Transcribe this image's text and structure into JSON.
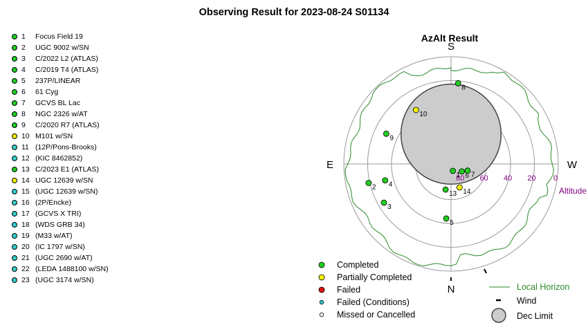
{
  "title": "Observing Result for 2023-08-24 S01134",
  "chart_title": "AzAlt Result",
  "colors": {
    "completed": "#22cc22",
    "partial": "#f2f200",
    "failed": "#dd1111",
    "failed_conditions": "#33cccc",
    "missed": "#ffffff",
    "horizon": "#2a8a2a",
    "altitude_label": "#800080"
  },
  "targets": [
    {
      "num": "1",
      "name": "Focus Field 19",
      "status": "completed"
    },
    {
      "num": "2",
      "name": "UGC 9002 w/SN",
      "status": "completed"
    },
    {
      "num": "3",
      "name": "C/2022 L2 (ATLAS)",
      "status": "completed"
    },
    {
      "num": "4",
      "name": "C/2019 T4 (ATLAS)",
      "status": "completed"
    },
    {
      "num": "5",
      "name": "237P/LINEAR",
      "status": "completed"
    },
    {
      "num": "6",
      "name": "61 Cyg",
      "status": "completed"
    },
    {
      "num": "7",
      "name": "GCVS BL Lac",
      "status": "completed"
    },
    {
      "num": "8",
      "name": "NGC 2326 w/AT",
      "status": "completed"
    },
    {
      "num": "9",
      "name": "C/2020 R7 (ATLAS)",
      "status": "completed"
    },
    {
      "num": "10",
      "name": "M101 w/SN",
      "status": "partial"
    },
    {
      "num": "11",
      "name": " (12P/Pons-Brooks)",
      "status": "failed_conditions"
    },
    {
      "num": "12",
      "name": " (KIC 8462852)",
      "status": "failed_conditions"
    },
    {
      "num": "13",
      "name": "C/2023 E1 (ATLAS)",
      "status": "completed"
    },
    {
      "num": "14",
      "name": "UGC 12639 w/SN",
      "status": "partial"
    },
    {
      "num": "15",
      "name": " (UGC 12639 w/SN)",
      "status": "failed_conditions"
    },
    {
      "num": "16",
      "name": " (2P/Encke)",
      "status": "failed_conditions"
    },
    {
      "num": "17",
      "name": " (GCVS X TRI)",
      "status": "failed_conditions"
    },
    {
      "num": "18",
      "name": " (WDS GRB 34)",
      "status": "failed_conditions"
    },
    {
      "num": "19",
      "name": " (M33 w/AT)",
      "status": "failed_conditions"
    },
    {
      "num": "20",
      "name": " (IC 1797 w/SN)",
      "status": "failed_conditions"
    },
    {
      "num": "21",
      "name": " (UGC 2690 w/AT)",
      "status": "failed_conditions"
    },
    {
      "num": "22",
      "name": " (LEDA 1488100 w/SN)",
      "status": "failed_conditions"
    },
    {
      "num": "23",
      "name": " (UGC 3174 w/SN)",
      "status": "failed_conditions"
    }
  ],
  "compass": {
    "top": "S",
    "bottom": "N",
    "left": "E",
    "right": "W"
  },
  "altitude_ticks": [
    "80",
    "60",
    "40",
    "20",
    "0"
  ],
  "altitude_title": "Altitude",
  "plotted": [
    {
      "label": "1",
      "status": "completed",
      "az": 195,
      "alt": 84
    },
    {
      "label": "2",
      "status": "completed",
      "az": 103,
      "alt": 19
    },
    {
      "label": "3",
      "status": "completed",
      "az": 120,
      "alt": 25
    },
    {
      "label": "4",
      "status": "completed",
      "az": 104,
      "alt": 33
    },
    {
      "label": "5",
      "status": "completed",
      "az": 175,
      "alt": 44
    },
    {
      "label": "6",
      "status": "completed",
      "az": 235,
      "alt": 79
    },
    {
      "label": "7",
      "status": "completed",
      "az": 248,
      "alt": 75
    },
    {
      "label": "8",
      "status": "completed",
      "az": 355,
      "alt": 22
    },
    {
      "label": "9",
      "status": "completed",
      "az": 65,
      "alt": 30
    },
    {
      "label": "10",
      "status": "partial",
      "az": 33,
      "alt": 36
    },
    {
      "label": "13",
      "status": "completed",
      "az": 168,
      "alt": 68
    },
    {
      "label": "14",
      "status": "partial",
      "az": 200,
      "alt": 69
    }
  ],
  "dec_limit": {
    "az": 0,
    "alt": 65,
    "radius_deg": 14
  },
  "legend": {
    "completed": "Completed",
    "partial": "Partially Completed",
    "failed": "Failed",
    "failed_conditions": "Failed (Conditions)",
    "missed": "Missed or Cancelled",
    "horizon": "Local Horizon",
    "wind": "Wind",
    "dec_limit": "Dec Limit"
  }
}
